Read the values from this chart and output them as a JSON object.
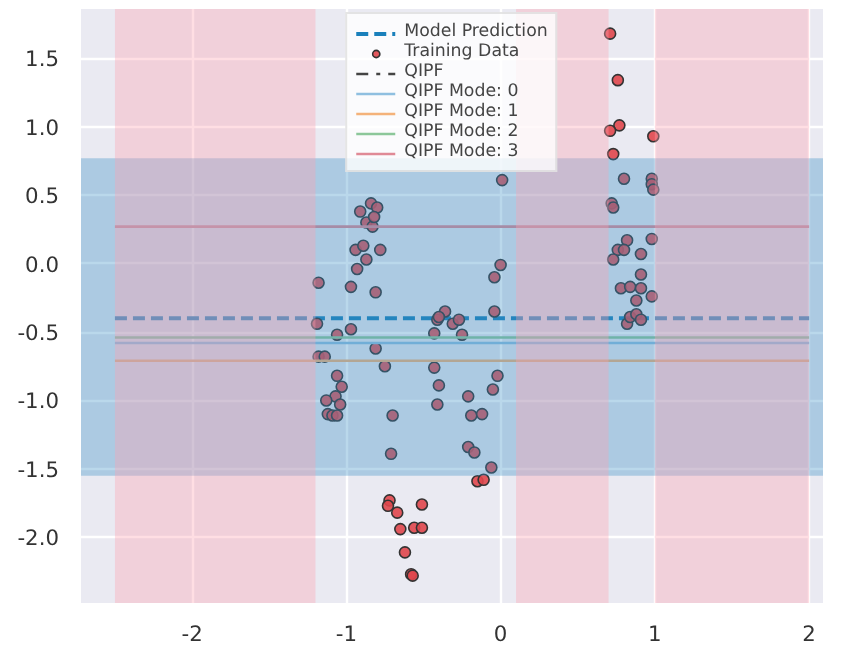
{
  "chart_data": {
    "type": "scatter",
    "xlim": [
      -2.72,
      2.09
    ],
    "ylim": [
      -2.48,
      1.86
    ],
    "xticks": [
      -2,
      -1,
      0,
      1,
      2
    ],
    "yticks": [
      {
        "value": -2,
        "label": "-2.0"
      },
      -1.5,
      {
        "value": -1,
        "label": "-1.0"
      },
      -0.5,
      {
        "value": 0,
        "label": "0.0"
      },
      0.5,
      {
        "value": 1,
        "label": "1.0"
      },
      1.5
    ],
    "grid": true,
    "legend": "top",
    "bands": [
      {
        "axis": "y",
        "from": -1.55,
        "to": 0.77,
        "color": "#3a8fc7"
      },
      {
        "axis": "x",
        "from": -2.5,
        "to": -1.2,
        "color": "#ffa0b0"
      },
      {
        "axis": "x",
        "from": 0.1,
        "to": 0.7,
        "color": "#ffa0b0"
      },
      {
        "axis": "x",
        "from": 1.0,
        "to": 2.0,
        "color": "#ffa0b0"
      }
    ],
    "series": [
      {
        "name": "Model Prediction",
        "type": "line",
        "line_style": "dashed",
        "color": "#1a80bb",
        "x": [
          -2.5,
          2.0
        ],
        "values": [
          -0.4,
          -0.4
        ]
      },
      {
        "name": "Training Data",
        "marker": "circle",
        "color": "#e0474c",
        "x": [
          -1.18,
          -0.97,
          -0.81,
          -0.93,
          -0.87,
          -0.78,
          -0.94,
          -0.89,
          -0.84,
          -0.8,
          -0.91,
          -0.87,
          -0.83,
          -0.82,
          0.71,
          0.76,
          0.77,
          0.71,
          0.99,
          0.73,
          0.8,
          0.98,
          0.98,
          0.99,
          0.01,
          0.72,
          0.73,
          0.82,
          0.98,
          0.76,
          0.8,
          0.91,
          0.73,
          0.0,
          -0.04,
          0.91,
          0.78,
          0.84,
          0.91,
          0.98,
          0.88,
          -0.36,
          -0.04,
          -1.19,
          -1.06,
          -0.97,
          -1.18,
          -1.14,
          -1.06,
          -1.03,
          -1.07,
          -1.04,
          -1.13,
          -1.12,
          -1.09,
          -1.06,
          -0.81,
          -0.75,
          -0.7,
          -0.71,
          -0.72,
          -0.73,
          -0.67,
          -0.51,
          -0.56,
          -0.51,
          -0.65,
          -0.62,
          -0.58,
          -0.57,
          -0.43,
          -0.41,
          -0.4,
          -0.43,
          -0.41,
          -0.4,
          -0.31,
          -0.27,
          -0.25,
          -0.21,
          -0.19,
          -0.12,
          -0.05,
          -0.02,
          -0.21,
          -0.17,
          -0.06,
          -0.15,
          -0.11,
          0.82,
          0.84,
          0.88,
          0.91
        ],
        "values": [
          -0.14,
          -0.17,
          -0.21,
          -0.04,
          0.03,
          0.1,
          0.1,
          0.13,
          0.44,
          0.41,
          0.38,
          0.3,
          0.27,
          0.34,
          1.68,
          1.34,
          1.01,
          0.97,
          0.93,
          0.8,
          0.62,
          0.62,
          0.58,
          0.54,
          0.61,
          0.44,
          0.41,
          0.17,
          0.18,
          0.1,
          0.1,
          0.07,
          0.03,
          -0.01,
          -0.1,
          -0.08,
          -0.18,
          -0.17,
          -0.18,
          -0.24,
          -0.27,
          -0.35,
          -0.35,
          -0.44,
          -0.52,
          -0.48,
          -0.68,
          -0.68,
          -0.82,
          -0.9,
          -0.97,
          -1.03,
          -1.0,
          -1.1,
          -1.11,
          -1.11,
          -0.62,
          -0.75,
          -1.11,
          -1.39,
          -1.73,
          -1.77,
          -1.82,
          -1.76,
          -1.93,
          -1.93,
          -1.94,
          -2.11,
          -2.27,
          -2.28,
          -0.76,
          -1.03,
          -0.89,
          -0.51,
          -0.41,
          -0.39,
          -0.44,
          -0.41,
          -0.52,
          -0.97,
          -1.11,
          -1.1,
          -0.92,
          -0.82,
          -1.34,
          -1.38,
          -1.49,
          -1.59,
          -1.58,
          -0.44,
          -0.39,
          -0.37,
          -0.41
        ]
      },
      {
        "name": "QIPF",
        "type": "line",
        "line_style": "dashdot",
        "color": "#444444"
      },
      {
        "name": "QIPF Mode: 0",
        "type": "line",
        "line_style": "solid",
        "color": "#8fbfe0",
        "x": [
          -2.5,
          2.0
        ],
        "values": [
          -0.58,
          -0.58
        ]
      },
      {
        "name": "QIPF Mode: 1",
        "type": "line",
        "line_style": "solid",
        "color": "#f4b27a",
        "x": [
          -2.5,
          2.0
        ],
        "values": [
          -0.71,
          -0.71
        ]
      },
      {
        "name": "QIPF Mode: 2",
        "type": "line",
        "line_style": "solid",
        "color": "#8cc79a",
        "x": [
          -2.5,
          2.0
        ],
        "values": [
          -0.54,
          -0.54
        ]
      },
      {
        "name": "QIPF Mode: 3",
        "type": "line",
        "line_style": "solid",
        "color": "#e08a96",
        "x": [
          -2.5,
          2.0
        ],
        "values": [
          0.27,
          0.27
        ]
      }
    ]
  }
}
